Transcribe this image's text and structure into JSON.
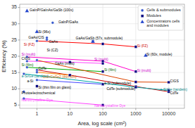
{
  "chart_data": {
    "type": "scatter",
    "xlabel": "Area, log scale (cm²)",
    "ylabel": "Efficiency (%)",
    "log": "x",
    "xlim": [
      0.3,
      30000
    ],
    "xticks": [
      1,
      10,
      100,
      1000,
      10000
    ],
    "ylim": [
      4,
      36
    ],
    "yticks": [
      5,
      10,
      15,
      20,
      25,
      30,
      35
    ],
    "grid": true,
    "legend": "upper right",
    "series": [
      {
        "type": "line",
        "color": "#ff0000",
        "x": [
          1.0,
          100,
          1000
        ],
        "values": [
          24.7,
          23.8,
          22.9
        ]
      },
      {
        "type": "line",
        "color": "#ff44ff",
        "x": [
          0.5,
          10,
          100
        ],
        "values": [
          18.5,
          18.2,
          17.8
        ]
      },
      {
        "type": "line",
        "color": "#ff00cc",
        "x": [
          0.5,
          100,
          1000
        ],
        "values": [
          19.8,
          18.5,
          15.3
        ]
      },
      {
        "type": "line",
        "color": "#00aa00",
        "x": [
          0.5,
          100
        ],
        "values": [
          16.6,
          15.3
        ]
      },
      {
        "type": "line",
        "color": "#cc0000",
        "x": [
          1.0,
          10,
          1000,
          10000
        ],
        "values": [
          15.8,
          14.2,
          10.7,
          9.1
        ]
      },
      {
        "type": "line",
        "color": "#00aaaa",
        "x": [
          0.4,
          1000,
          10000
        ],
        "values": [
          14.6,
          10.5,
          9.5
        ]
      },
      {
        "type": "line",
        "color": "#dd4400",
        "x": [
          1.0,
          1000,
          10000
        ],
        "values": [
          18.8,
          12.1,
          12.0
        ]
      },
      {
        "type": "line",
        "color": "#4444ff",
        "x": [
          1.0,
          100
        ],
        "values": [
          12.7,
          11.4
        ]
      },
      {
        "type": "line",
        "color": "#ff44ff",
        "x": [
          0.4,
          100
        ],
        "values": [
          7.0,
          5.0
        ]
      },
      {
        "type": "line",
        "color": "#ff8800",
        "x": [
          1.0,
          10
        ],
        "values": [
          15.1,
          14.2
        ]
      },
      {
        "type": "scatter",
        "name": "Cells & submodules",
        "color": "#3355cc",
        "marker": "circle",
        "x": [
          1.0,
          2.0,
          2.0,
          0.5,
          0.5,
          0.5,
          1.0,
          1.0,
          0.4,
          1.0,
          0.4,
          0.4,
          1.0,
          3.0
        ],
        "values": [
          24.7,
          25.1,
          25.7,
          19.8,
          18.5,
          16.6,
          15.8,
          12.7,
          14.6,
          18.8,
          9.1,
          7.0,
          15.1,
          30.3
        ]
      },
      {
        "type": "scatter",
        "name": "Modules",
        "color": "#000080",
        "marker": "square",
        "x": [
          100,
          1000,
          100,
          1000,
          10,
          100,
          100,
          10,
          1000,
          10000,
          1000,
          10000,
          100,
          1000,
          10000,
          100,
          10,
          50,
          1.0
        ],
        "values": [
          23.8,
          22.9,
          18.5,
          15.3,
          18.2,
          17.8,
          15.3,
          14.2,
          10.7,
          9.1,
          10.5,
          9.5,
          11.4,
          12.1,
          12.0,
          5.0,
          14.2,
          24.6,
          10.8
        ]
      },
      {
        "type": "scatter",
        "name": "Concentrators cells\nand modules",
        "color": "#2244cc",
        "marker": "triangle",
        "x": [
          0.5,
          1.0,
          50,
          2000
        ],
        "values": [
          34.0,
          27.6,
          24.6,
          20.3
        ]
      }
    ],
    "annotations": [
      {
        "text": "GaInP/GaInAs/GaSb (100x)",
        "x": 0.6,
        "y": 34.1,
        "color": "black"
      },
      {
        "text": "GaInP/GaAs",
        "x": 4.5,
        "y": 30.5,
        "color": "black"
      },
      {
        "text": "Si (96x)",
        "x": 1.1,
        "y": 27.5,
        "color": "black"
      },
      {
        "text": "GaAs/CIS",
        "x": 0.55,
        "y": 25.6,
        "color": "black"
      },
      {
        "text": "GaAs",
        "x": 2.3,
        "y": 24.5,
        "color": "black"
      },
      {
        "text": "Si (FZ)",
        "x": 0.4,
        "y": 23.6,
        "color": "#cc0000"
      },
      {
        "text": "Si (CZ)",
        "x": 2.0,
        "y": 21.8,
        "color": "black"
      },
      {
        "text": "GaAs/GaSb (57x, submodule)",
        "x": 15,
        "y": 25.5,
        "color": "black"
      },
      {
        "text": "Si (FZ)",
        "x": 1100,
        "y": 23.2,
        "color": "#cc0000"
      },
      {
        "text": "Si (60x, module)",
        "x": 2100,
        "y": 20.6,
        "color": "black"
      },
      {
        "text": "Si (multi)",
        "x": 0.34,
        "y": 20.5,
        "color": "#cc00cc"
      },
      {
        "text": "CIGS",
        "x": 0.34,
        "y": 19.2,
        "color": "black"
      },
      {
        "text": "GaAs (multi)",
        "x": 3.5,
        "y": 17.6,
        "color": "black"
      },
      {
        "text": "Si (multi)",
        "x": 55,
        "y": 19.0,
        "color": "#cc00cc"
      },
      {
        "text": "Si (film)",
        "x": 0.34,
        "y": 17.3,
        "color": "#006600"
      },
      {
        "text": "Si (film)",
        "x": 110,
        "y": 15.8,
        "color": "#006600"
      },
      {
        "text": "CdTe",
        "x": 1.1,
        "y": 16.2,
        "color": "black"
      },
      {
        "text": "a-Si/Ge (tandem)",
        "x": 0.34,
        "y": 13.7,
        "color": "#008888"
      },
      {
        "text": "CuInGaSe2 (thin film)",
        "x": 1.5,
        "y": 13.5,
        "color": "#cc6600"
      },
      {
        "text": "a-Si",
        "x": 0.5,
        "y": 12.2,
        "color": "black"
      },
      {
        "text": "Si (thin film on glass)",
        "x": 1.1,
        "y": 10.3,
        "color": "black"
      },
      {
        "text": "Photoelectrochemical",
        "x": 0.34,
        "y": 8.7,
        "color": "black"
      },
      {
        "text": "Nanocrystalline Dye",
        "x": 0.34,
        "y": 6.5,
        "color": "#ff44ff"
      },
      {
        "text": "Si (multi)",
        "x": 1100,
        "y": 15.6,
        "color": "#cc00cc"
      },
      {
        "text": "CIGS",
        "x": 11000,
        "y": 12.3,
        "color": "black"
      },
      {
        "text": "CdTe",
        "x": 11000,
        "y": 8.7,
        "color": "black"
      },
      {
        "text": "a-Si/Ge (tandem)",
        "x": 5500,
        "y": 9.8,
        "color": "#008888"
      },
      {
        "text": "Nanocrystalline Dye",
        "x": 55,
        "y": 4.8,
        "color": "#ff44ff"
      },
      {
        "text": "a-Si (submodule)",
        "x": 110,
        "y": 11.7,
        "color": "black"
      },
      {
        "text": "CdTe (submodule)",
        "x": 130,
        "y": 10.0,
        "color": "black"
      }
    ]
  }
}
